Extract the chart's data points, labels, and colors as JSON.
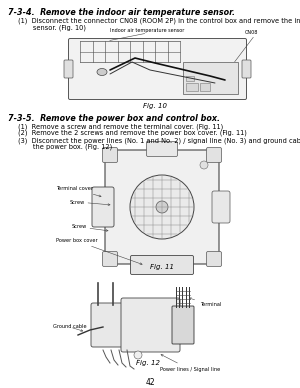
{
  "page_number": "42",
  "bg": "#ffffff",
  "tc": "#000000",
  "title1": "7-3-4.  Remove the indoor air temperature sensor.",
  "body1_line1": "(1)  Disconnect the connector CN08 (ROOM 2P) in the control box and remove the indoor air temperature",
  "body1_line2": "       sensor. (Fig. 10)",
  "fig10_label": "Fig. 10",
  "ann_sensor": "Indoor air temperature sensor",
  "ann_cn08": "CN08",
  "title2": "7-3-5.  Remove the power box and control box.",
  "body2_line1": "(1)  Remove a screw and remove the terminal cover. (Fig. 11)",
  "body2_line2": "(2)  Remove the 2 screws and remove the power box cover. (Fig. 11)",
  "body2_line3": "(3)  Disconnect the power lines (No. 1 and No. 2) / signal line (No. 3) and ground cable from the terminals in",
  "body2_line4": "       the power box. (Fig. 12)",
  "fig11_label": "Fig. 11",
  "fig12_label": "Fig. 12",
  "ann_tc": "Terminal cover",
  "ann_screw1": "Screw",
  "ann_screw2": "Screw",
  "ann_pbc": "Power box cover",
  "ann_terminal": "Terminal",
  "ann_gc": "Ground cable",
  "ann_pl": "Power lines / Signal line"
}
